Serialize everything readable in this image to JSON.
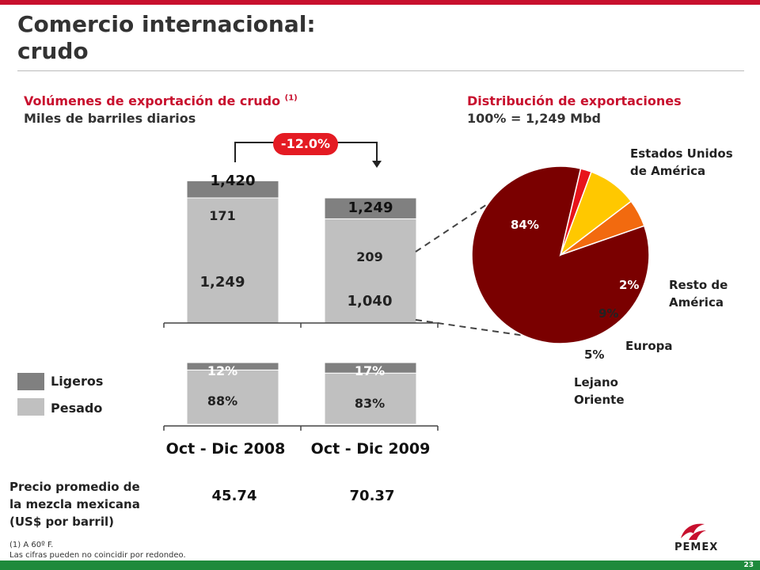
{
  "header": {
    "title_line1": "Comercio internacional:",
    "title_line2": "crudo"
  },
  "left_section": {
    "heading": "Volúmenes de exportación de crudo",
    "heading_note": "(1)",
    "subheading": "Miles de barriles diarios",
    "change_badge": "-12.0%"
  },
  "right_section": {
    "heading": "Distribución de exportaciones",
    "subheading_prefix": "100% =",
    "subheading_value": "1,249",
    "subheading_unit": "Mbd"
  },
  "legend": {
    "light_label": "Ligeros",
    "heavy_label": "Pesado",
    "light_color": "#808080",
    "heavy_color": "#c0c0c0"
  },
  "price": {
    "label_line1": "Precio promedio de",
    "label_line2": "la mezcla mexicana",
    "label_line3": "(US$ por barril)",
    "values": [
      "45.74",
      "70.37"
    ]
  },
  "footnotes": {
    "line1": "(1) A 60º F.",
    "line2": "Las cifras pueden no coincidir por redondeo."
  },
  "page_number": "23",
  "logo_text": "PEMEX",
  "chart_data": [
    {
      "type": "bar",
      "stacked": true,
      "categories": [
        "Oct - Dic 2008",
        "Oct - Dic 2009"
      ],
      "series": [
        {
          "name": "Pesado",
          "values": [
            1249,
            1040
          ],
          "labels": [
            "1,249",
            "1,040"
          ],
          "color": "#c0c0c0"
        },
        {
          "name": "Ligeros",
          "values": [
            171,
            209
          ],
          "labels": [
            "171",
            "209"
          ],
          "color": "#808080"
        }
      ],
      "totals": [
        1420,
        1249
      ],
      "total_labels": [
        "1,420",
        "1,249"
      ],
      "annotation": "-12.0%",
      "ylim": [
        0,
        1420
      ]
    },
    {
      "type": "bar",
      "stacked": true,
      "percent": true,
      "categories": [
        "Oct - Dic 2008",
        "Oct - Dic 2009"
      ],
      "series": [
        {
          "name": "Pesado",
          "values": [
            88,
            83
          ],
          "labels": [
            "88%",
            "83%"
          ],
          "color": "#c0c0c0"
        },
        {
          "name": "Ligeros",
          "values": [
            12,
            17
          ],
          "labels": [
            "12%",
            "17%"
          ],
          "color": "#808080"
        }
      ],
      "ylim": [
        0,
        100
      ]
    },
    {
      "type": "pie",
      "slices": [
        {
          "name": "Estados Unidos de América",
          "label_line1": "Estados Unidos",
          "label_line2": "de América",
          "value": 84,
          "value_label": "84%",
          "color": "#7a0000"
        },
        {
          "name": "Resto de América",
          "label_line1": "Resto de",
          "label_line2": "América",
          "value": 2,
          "value_label": "2%",
          "color": "#e8141b"
        },
        {
          "name": "Europa",
          "label_line1": "Europa",
          "label_line2": "",
          "value": 9,
          "value_label": "9%",
          "color": "#ffc800"
        },
        {
          "name": "Lejano Oriente",
          "label_line1": "Lejano",
          "label_line2": "Oriente",
          "value": 5,
          "value_label": "5%",
          "color": "#f26a0f"
        }
      ]
    }
  ]
}
